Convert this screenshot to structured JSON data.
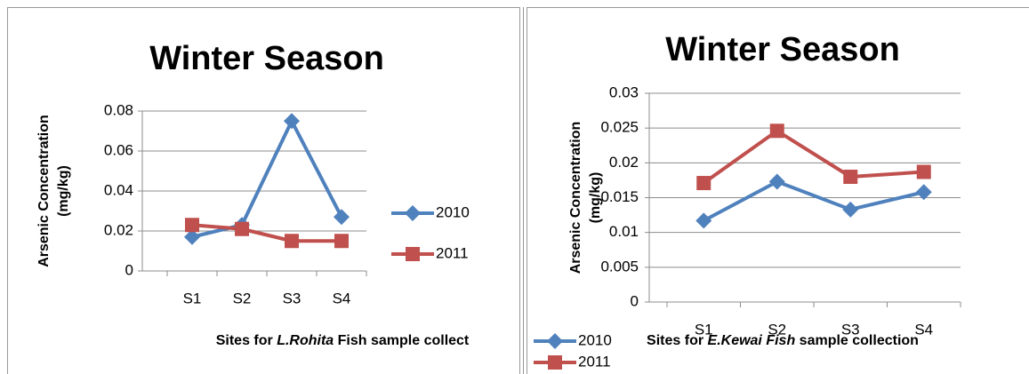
{
  "chart_data": [
    {
      "type": "line",
      "title": "Winter Season",
      "ylabel": [
        "Arsenic Concentration",
        "(mg/kg)"
      ],
      "xlabel": [
        {
          "text": "Sites for ",
          "italic": false
        },
        {
          "text": "L.Rohita",
          "italic": true
        },
        {
          "text": " Fish sample collect",
          "italic": false
        }
      ],
      "categories": [
        "S1",
        "S2",
        "S3",
        "S4"
      ],
      "series": [
        {
          "name": "2010",
          "color": "#4f81bd",
          "marker": "diamond",
          "values": [
            0.017,
            0.023,
            0.075,
            0.027
          ]
        },
        {
          "name": "2011",
          "color": "#c0504d",
          "marker": "square",
          "values": [
            0.023,
            0.021,
            0.015,
            0.015
          ]
        }
      ],
      "ylim": [
        0,
        0.08
      ],
      "yticks": [
        0,
        0.02,
        0.04,
        0.06,
        0.08
      ],
      "grid": true,
      "legend": "right"
    },
    {
      "type": "line",
      "title": "Winter Season",
      "ylabel": [
        "Arsenic Concentration",
        "(mg/kg)"
      ],
      "xlabel": [
        {
          "text": "Sites for ",
          "italic": false
        },
        {
          "text": "E.Kewai",
          "italic": true
        },
        {
          "text": " Fish",
          "italic": true
        },
        {
          "text": " sample collection",
          "italic": false
        }
      ],
      "categories": [
        "S1",
        "S2",
        "S3",
        "S4"
      ],
      "series": [
        {
          "name": "2010",
          "color": "#4f81bd",
          "marker": "diamond",
          "values": [
            0.0117,
            0.0173,
            0.0133,
            0.0158
          ]
        },
        {
          "name": "2011",
          "color": "#c0504d",
          "marker": "square",
          "values": [
            0.0171,
            0.0246,
            0.018,
            0.0187
          ]
        }
      ],
      "ylim": [
        0,
        0.03
      ],
      "yticks": [
        0,
        0.005,
        0.01,
        0.015,
        0.02,
        0.025,
        0.03
      ],
      "grid": true,
      "legend": "bottom"
    }
  ]
}
